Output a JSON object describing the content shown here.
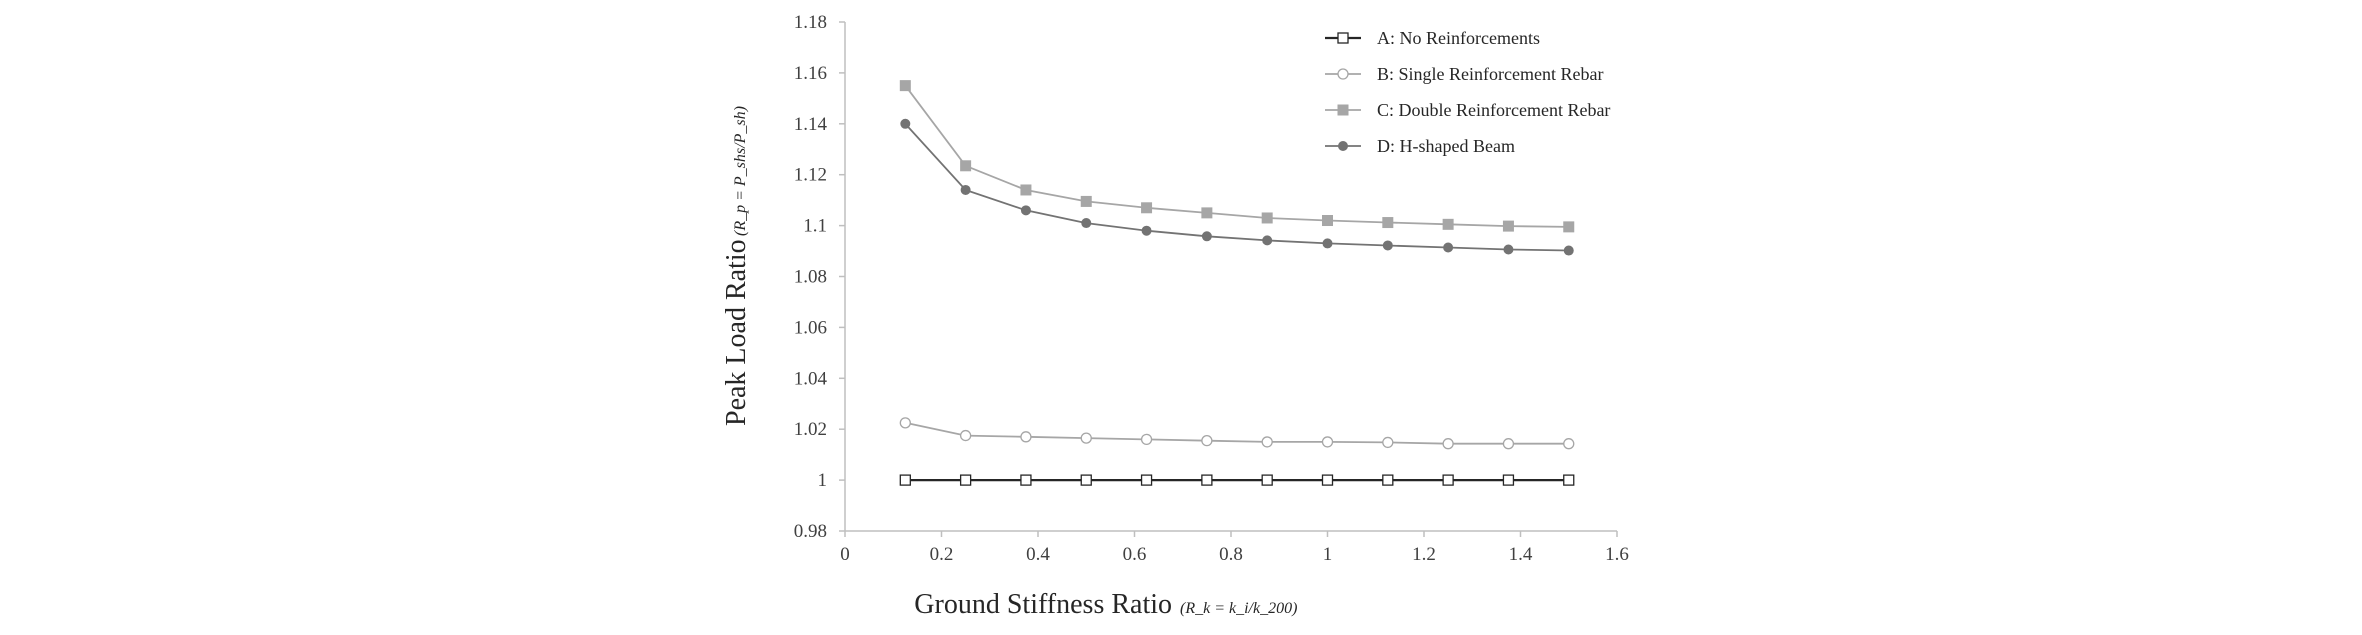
{
  "chart_data": {
    "type": "line",
    "title": "",
    "xlabel": "Ground Stiffness Ratio",
    "xlabel_formula": "(R_k = k_i/k_200)",
    "ylabel": "Peak Load Ratio",
    "ylabel_formula": "(R_p = P_shs/P_sh)",
    "xlim": [
      0,
      1.6
    ],
    "ylim": [
      0.98,
      1.18
    ],
    "xticks": [
      0,
      0.2,
      0.4,
      0.6,
      0.8,
      1,
      1.2,
      1.4,
      1.6
    ],
    "xtick_labels": [
      "0",
      "0.2",
      "0.4",
      "0.6",
      "0.8",
      "1",
      "1.2",
      "1.4",
      "1.6"
    ],
    "yticks": [
      0.98,
      1,
      1.02,
      1.04,
      1.06,
      1.08,
      1.1,
      1.12,
      1.14,
      1.16,
      1.18
    ],
    "ytick_labels": [
      "0.98",
      "1",
      "1.02",
      "1.04",
      "1.06",
      "1.08",
      "1.1",
      "1.12",
      "1.14",
      "1.16",
      "1.18"
    ],
    "grid": false,
    "legend_position": "top-right",
    "x": [
      0.125,
      0.25,
      0.375,
      0.5,
      0.625,
      0.75,
      0.875,
      1.0,
      1.125,
      1.25,
      1.375,
      1.5
    ],
    "series": [
      {
        "name": "A: No Reinforcements",
        "color": "#262626",
        "marker": "open-square",
        "values": [
          1.0,
          1.0,
          1.0,
          1.0,
          1.0,
          1.0,
          1.0,
          1.0,
          1.0,
          1.0,
          1.0,
          1.0
        ]
      },
      {
        "name": "B: Single Reinforcement Rebar",
        "color": "#a6a6a6",
        "marker": "open-circle",
        "values": [
          1.0225,
          1.0175,
          1.017,
          1.0165,
          1.016,
          1.0155,
          1.015,
          1.015,
          1.0148,
          1.0143,
          1.0143,
          1.0143
        ]
      },
      {
        "name": "C: Double Reinforcement Rebar",
        "color": "#a6a6a6",
        "marker": "filled-square",
        "values": [
          1.155,
          1.1235,
          1.114,
          1.1095,
          1.107,
          1.105,
          1.103,
          1.102,
          1.1012,
          1.1005,
          1.0998,
          1.0995
        ]
      },
      {
        "name": "D: H-shaped Beam",
        "color": "#737373",
        "marker": "filled-circle",
        "values": [
          1.14,
          1.114,
          1.106,
          1.101,
          1.098,
          1.0958,
          1.0942,
          1.093,
          1.0922,
          1.0914,
          1.0906,
          1.0902
        ]
      }
    ]
  }
}
